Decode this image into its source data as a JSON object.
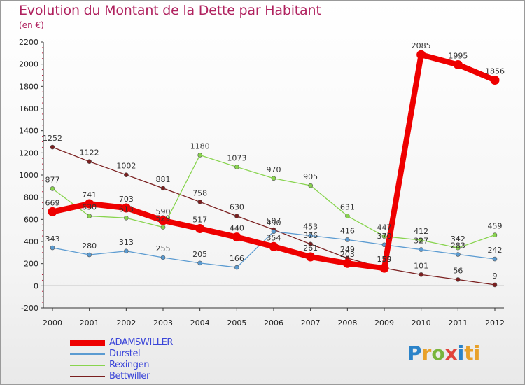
{
  "chart_data": {
    "type": "line",
    "title": "Evolution du Montant de la Dette par Habitant",
    "subtitle": "(en €)",
    "x": [
      "2000",
      "2001",
      "2002",
      "2003",
      "2004",
      "2005",
      "2006",
      "2007",
      "2008",
      "2009",
      "2010",
      "2011",
      "2012"
    ],
    "ylim": [
      -200,
      2200
    ],
    "yticks": [
      -200,
      0,
      200,
      400,
      600,
      800,
      1000,
      1200,
      1400,
      1600,
      1800,
      2000,
      2200
    ],
    "grid": false,
    "legend_position": "bottom-left",
    "series": [
      {
        "name": "ADAMSWILLER",
        "color": "#ee0000",
        "values": [
          669,
          741,
          703,
          590,
          517,
          440,
          354,
          261,
          203,
          159,
          2085,
          1995,
          1856
        ]
      },
      {
        "name": "Durstel",
        "color": "#5b9bd1",
        "values": [
          343,
          280,
          313,
          255,
          205,
          166,
          490,
          453,
          416,
          370,
          327,
          283,
          242
        ]
      },
      {
        "name": "Rexingen",
        "color": "#88d44e",
        "values": [
          877,
          630,
          613,
          529,
          1180,
          1073,
          970,
          905,
          631,
          447,
          412,
          342,
          459
        ]
      },
      {
        "name": "Bettwiller",
        "color": "#7a1f1f",
        "values": [
          1252,
          1122,
          1002,
          881,
          758,
          630,
          507,
          376,
          249,
          159,
          101,
          56,
          9
        ]
      }
    ],
    "data_labels": [
      [
        "669",
        "741",
        "703",
        "590",
        "517",
        "440",
        "354",
        "261",
        "203",
        "159",
        "2085",
        "1995",
        "1856"
      ],
      [
        "343",
        "280",
        "313",
        "255",
        "205",
        "166",
        "490",
        "453",
        "416",
        "370",
        "327",
        "283",
        "242"
      ],
      [
        "877",
        "630",
        "613",
        "529",
        "1180",
        "1073",
        "970",
        "905",
        "631",
        "447",
        "412",
        "342",
        "459"
      ],
      [
        "1252",
        "1122",
        "1002",
        "881",
        "758",
        "630",
        "507",
        "376",
        "249",
        "159",
        "101",
        "56",
        "9"
      ]
    ]
  },
  "logo": {
    "letters": [
      "P",
      "r",
      "o",
      "x",
      "i",
      "ti"
    ]
  }
}
